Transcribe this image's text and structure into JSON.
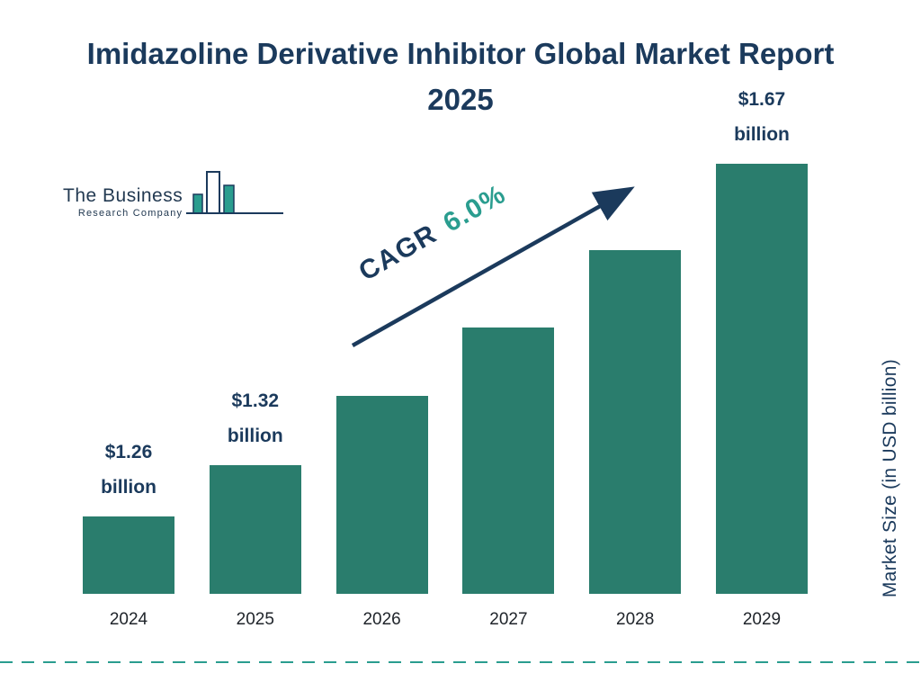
{
  "title": "Imidazoline Derivative Inhibitor Global Market Report 2025",
  "logo": {
    "line1": "The Business",
    "line2": "Research Company"
  },
  "chart_data": {
    "type": "bar",
    "title": "Imidazoline Derivative Inhibitor Global Market Report 2025",
    "categories": [
      "2024",
      "2025",
      "2026",
      "2027",
      "2028",
      "2029"
    ],
    "values": [
      1.26,
      1.32,
      1.4,
      1.48,
      1.57,
      1.67
    ],
    "unit": "USD billion",
    "value_labels": [
      {
        "amount": "$1.26",
        "unit": "billion"
      },
      {
        "amount": "$1.32",
        "unit": "billion"
      },
      null,
      null,
      null,
      {
        "amount": "$1.67",
        "unit": "billion"
      }
    ],
    "annotation": {
      "label": "CAGR",
      "value": "6.0%"
    },
    "xlabel": "",
    "ylabel": "Market Size (in USD billion)",
    "ylim": [
      1.17,
      1.67
    ],
    "grid": false,
    "legend": false,
    "bar_color": "#2a7d6d"
  },
  "colors": {
    "navy": "#1b3a5c",
    "teal_accent": "#2a9d8f",
    "bar": "#2a7d6d"
  }
}
